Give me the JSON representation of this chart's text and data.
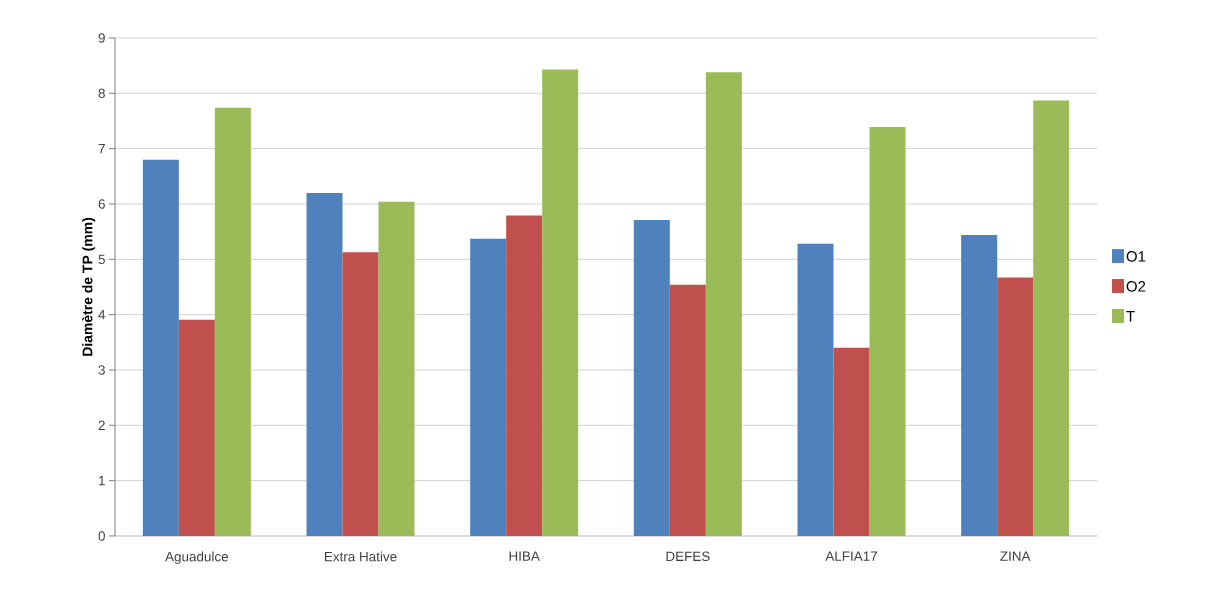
{
  "chart_data": {
    "type": "bar",
    "ylabel": "Diamètre de TP (mm)",
    "categories": [
      "Aguadulce",
      "Extra Hative",
      "HIBA",
      "DEFES",
      "ALFIA17",
      "ZINA"
    ],
    "series": [
      {
        "name": "O1",
        "color": "#4f81bd",
        "values": [
          6.8,
          6.2,
          5.37,
          5.71,
          5.28,
          5.44
        ]
      },
      {
        "name": "O2",
        "color": "#c0504d",
        "values": [
          3.91,
          5.13,
          5.79,
          4.54,
          3.4,
          4.67
        ]
      },
      {
        "name": "T",
        "color": "#9bbb59",
        "values": [
          7.74,
          6.04,
          8.43,
          8.38,
          7.39,
          7.87
        ]
      }
    ],
    "ylim": [
      0,
      9
    ],
    "yticks": [
      0,
      1,
      2,
      3,
      4,
      5,
      6,
      7,
      8,
      9
    ],
    "grid": "y",
    "legend": "right"
  }
}
